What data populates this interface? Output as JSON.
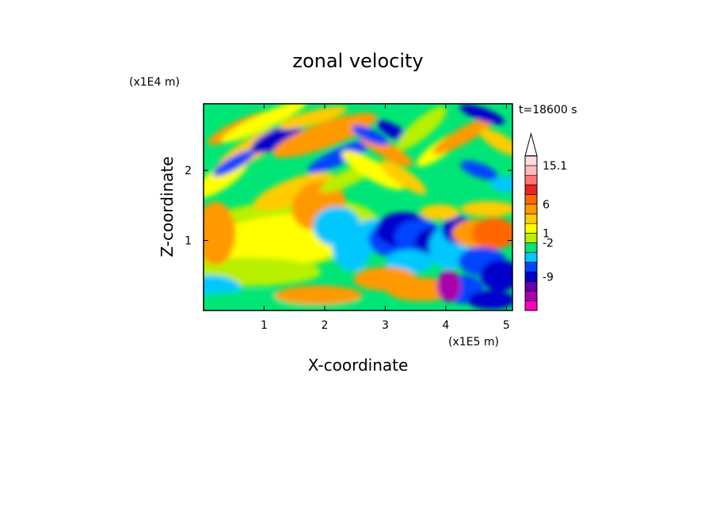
{
  "chart_data": {
    "type": "heatmap",
    "title": "zonal velocity",
    "xlabel": "X-coordinate",
    "ylabel": "Z-coordinate",
    "x_unit_label": "(x1E5 m)",
    "y_unit_label": "(x1E4 m)",
    "time_label": "t=18600 s",
    "xlim": [
      0,
      5.1
    ],
    "ylim": [
      0,
      2.95
    ],
    "x_ticks": [
      1,
      2,
      3,
      4,
      5
    ],
    "x_tick_labels": [
      "1",
      "2",
      "3",
      "4",
      "5"
    ],
    "y_ticks": [
      1,
      2
    ],
    "y_tick_labels": [
      "1",
      "2"
    ],
    "colorbar": {
      "labeled_levels": [
        "15.1",
        "6",
        "1",
        "-2",
        "-9"
      ],
      "extend_top": true,
      "colors_bottom_to_top": [
        "#ff00bb",
        "#aa00aa",
        "#6600aa",
        "#0000cc",
        "#0044ff",
        "#00c8ff",
        "#00e676",
        "#b8f000",
        "#ffff00",
        "#ffcc00",
        "#ff9900",
        "#ff6600",
        "#ee2222",
        "#ff7777",
        "#ffbbbb",
        "#ffdddd"
      ]
    },
    "grid": false,
    "legend_placement": "right"
  }
}
